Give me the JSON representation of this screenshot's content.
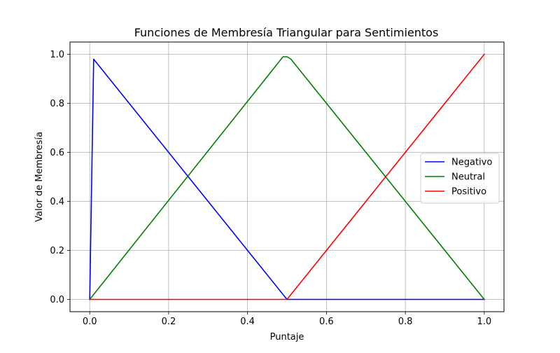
{
  "chart_data": {
    "type": "line",
    "title": "Funciones de Membresía Triangular para Sentimientos",
    "xlabel": "Puntaje",
    "ylabel": "Valor de Membresía",
    "xlim": [
      -0.05,
      1.05
    ],
    "ylim": [
      -0.05,
      1.05
    ],
    "x_ticks": [
      0.0,
      0.2,
      0.4,
      0.6,
      0.8,
      1.0
    ],
    "x_tick_labels": [
      "0.0",
      "0.2",
      "0.4",
      "0.6",
      "0.8",
      "1.0"
    ],
    "y_ticks": [
      0.0,
      0.2,
      0.4,
      0.6,
      0.8,
      1.0
    ],
    "y_tick_labels": [
      "0.0",
      "0.2",
      "0.4",
      "0.6",
      "0.8",
      "1.0"
    ],
    "grid": true,
    "legend_position": "center-right",
    "series": [
      {
        "name": "Negativo",
        "color": "#0000ff",
        "x": [
          0.0,
          0.01,
          0.5,
          0.51,
          1.0
        ],
        "y": [
          0.0,
          0.98,
          0.0,
          0.0,
          0.0
        ]
      },
      {
        "name": "Neutral",
        "color": "#008000",
        "x": [
          0.0,
          0.49,
          0.5,
          0.51,
          1.0
        ],
        "y": [
          0.0,
          0.99,
          0.99,
          0.98,
          0.0
        ]
      },
      {
        "name": "Positivo",
        "color": "#ff0000",
        "x": [
          0.0,
          0.49,
          0.5,
          0.51,
          1.0
        ],
        "y": [
          0.0,
          0.0,
          0.0,
          0.02,
          1.0
        ]
      }
    ]
  }
}
